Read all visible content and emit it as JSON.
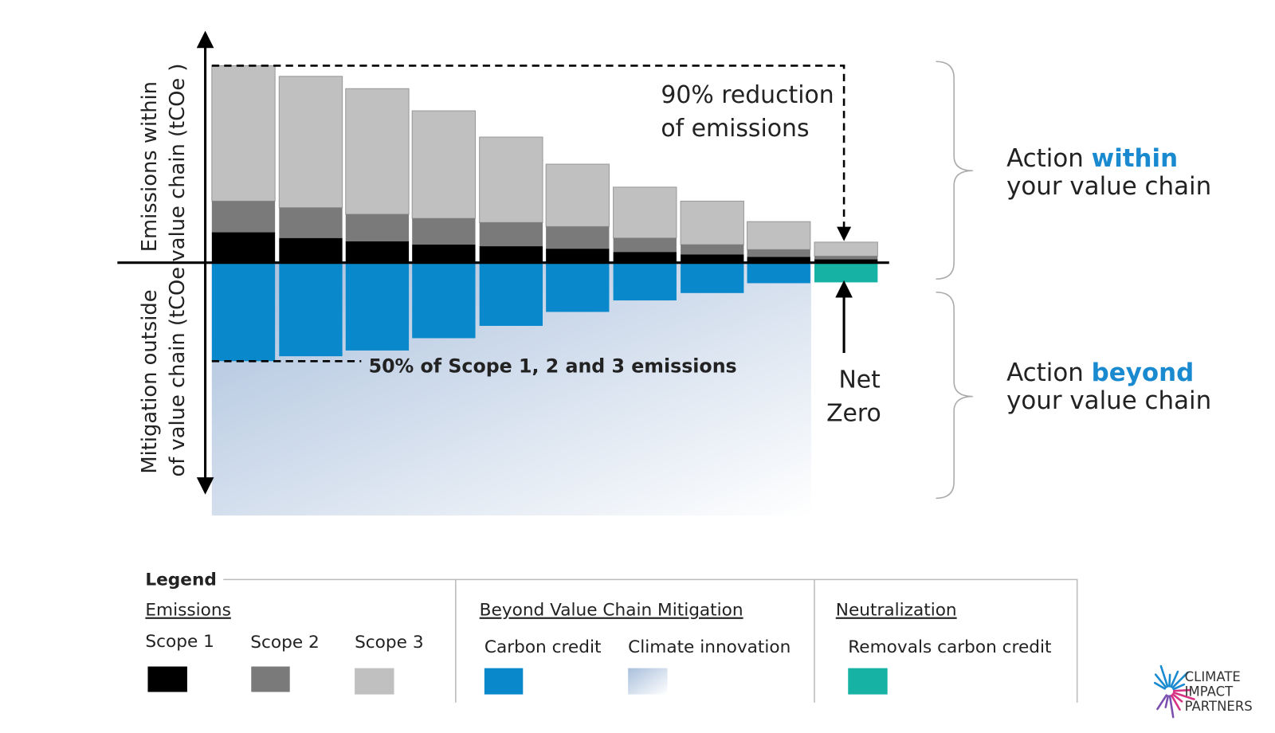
{
  "axis_labels": {
    "upper": [
      "Emissions within",
      "value chain (tCOe )"
    ],
    "lower": [
      "Mitigation outside",
      "of value chain (tCOe"
    ]
  },
  "annotations": {
    "reduction": [
      "90% reduction",
      "of emissions"
    ],
    "scope_note": "50% of Scope 1, 2 and 3 emissions",
    "net_zero": [
      "Net",
      "Zero"
    ]
  },
  "actions": [
    {
      "prefix": "Action",
      "highlight": "within",
      "line2": "your value chain"
    },
    {
      "prefix": "Action",
      "highlight": "beyond",
      "line2": "your value chain"
    }
  ],
  "legend": {
    "title": "Legend",
    "groups": [
      {
        "title": "Emissions",
        "items": [
          "Scope 1",
          "Scope 2",
          "Scope 3"
        ]
      },
      {
        "title": "Beyond Value Chain Mitigation",
        "items": [
          "Carbon credit",
          "Climate innovation"
        ]
      },
      {
        "title": "Neutralization",
        "items": [
          "Removals carbon credit"
        ]
      }
    ]
  },
  "logo": [
    "CLIMATE",
    "IMPACT",
    "PARTNERS"
  ]
}
